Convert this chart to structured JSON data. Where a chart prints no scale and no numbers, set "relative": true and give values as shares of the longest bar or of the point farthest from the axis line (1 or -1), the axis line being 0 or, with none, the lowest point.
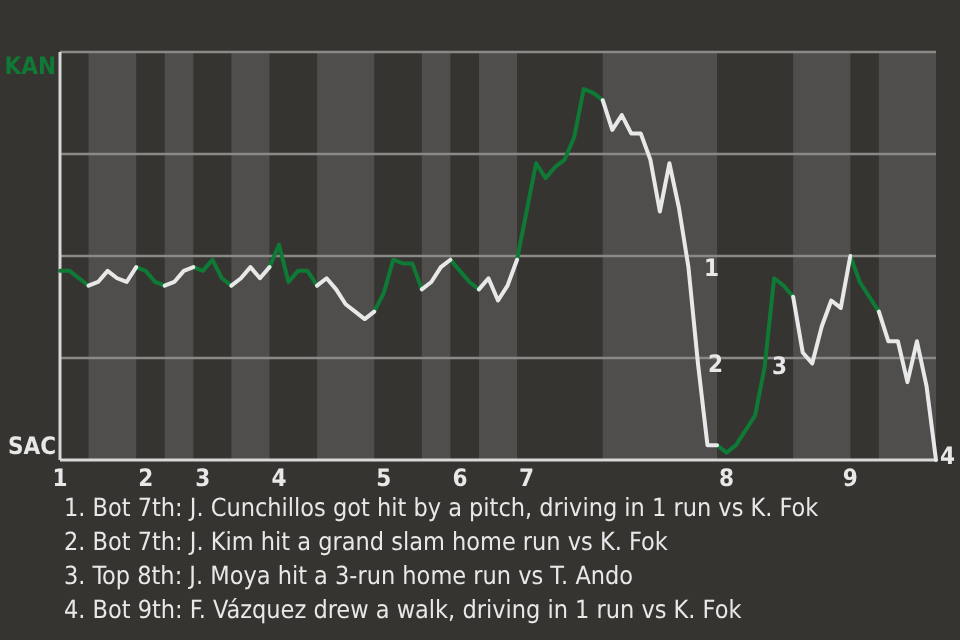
{
  "chart_data": {
    "type": "line",
    "relative": true,
    "grid": true,
    "marker": "none",
    "line_style": "solid",
    "legend": "left",
    "categories": [
      "1",
      null,
      null,
      null,
      null,
      null,
      null,
      null,
      null,
      "2",
      null,
      null,
      null,
      null,
      null,
      "3",
      null,
      null,
      null,
      null,
      null,
      null,
      null,
      "4",
      null,
      null,
      null,
      null,
      null,
      null,
      null,
      null,
      null,
      null,
      "5",
      null,
      null,
      null,
      null,
      null,
      null,
      null,
      "6",
      null,
      null,
      null,
      null,
      null,
      null,
      "7",
      null,
      null,
      null,
      null,
      null,
      null,
      null,
      null,
      null,
      null,
      null,
      null,
      null,
      null,
      null,
      null,
      null,
      null,
      null,
      null,
      "8",
      null,
      null,
      null,
      null,
      null,
      null,
      null,
      null,
      null,
      null,
      null,
      null,
      "9",
      null,
      null,
      null,
      null,
      null,
      null,
      null,
      null,
      null
    ],
    "series": [
      {
        "name": "KAN",
        "color": "#0e7a35",
        "values": [
          0.51,
          0.51,
          0.49,
          0.47,
          null,
          null,
          null,
          null,
          0.52,
          0.51,
          0.48,
          0.47,
          null,
          null,
          0.52,
          0.51,
          0.54,
          0.49,
          0.47,
          null,
          null,
          null,
          0.52,
          0.58,
          0.48,
          0.51,
          0.51,
          0.47,
          null,
          null,
          null,
          null,
          null,
          0.4,
          0.45,
          0.54,
          0.53,
          0.53,
          0.46,
          null,
          null,
          0.54,
          0.51,
          0.48,
          0.46,
          null,
          null,
          null,
          0.54,
          0.67,
          0.8,
          0.76,
          0.79,
          0.81,
          0.87,
          1,
          0.99,
          0.97,
          null,
          null,
          null,
          null,
          null,
          null,
          null,
          null,
          null,
          null,
          null,
          0.04,
          0.02,
          0.04,
          0.08,
          0.12,
          0.25,
          0.49,
          0.47,
          0.44,
          null,
          null,
          null,
          null,
          null,
          0.55,
          0.48,
          0.44,
          0.4,
          null,
          null,
          null,
          null,
          null,
          null
        ]
      },
      {
        "name": "SAC",
        "color": "#e8e8e8",
        "values": [
          null,
          null,
          null,
          0.47,
          0.48,
          0.51,
          0.49,
          0.48,
          0.52,
          null,
          null,
          0.47,
          0.48,
          0.51,
          0.52,
          null,
          null,
          null,
          0.47,
          0.49,
          0.52,
          0.49,
          0.52,
          null,
          null,
          null,
          null,
          0.47,
          0.49,
          0.46,
          0.42,
          0.4,
          0.38,
          0.4,
          null,
          null,
          null,
          null,
          0.46,
          0.48,
          0.52,
          0.54,
          null,
          null,
          0.46,
          0.49,
          0.43,
          0.47,
          0.54,
          null,
          null,
          null,
          null,
          null,
          null,
          null,
          null,
          0.97,
          0.89,
          0.93,
          0.88,
          0.88,
          0.81,
          0.67,
          0.8,
          0.68,
          0.52,
          0.26,
          0.04,
          0.04,
          null,
          null,
          null,
          null,
          null,
          null,
          null,
          0.44,
          0.29,
          0.26,
          0.36,
          0.43,
          0.41,
          0.55,
          null,
          null,
          0.4,
          0.32,
          0.32,
          0.21,
          0.32,
          0.2,
          0
        ]
      }
    ],
    "annotations": [
      "1",
      "2",
      "3",
      "4",
      "1. Bot 7th: J. Cunchillos got hit by a pitch, driving in 1 run vs K. Fok",
      "2. Bot 7th: J. Kim hit a grand slam home run vs K. Fok",
      "3. Top 8th: J. Moya hit a 3-run home run vs T. Ando",
      "4. Bot 9th: F. Vázquez drew a walk, driving in 1 run vs K. Fok"
    ]
  }
}
